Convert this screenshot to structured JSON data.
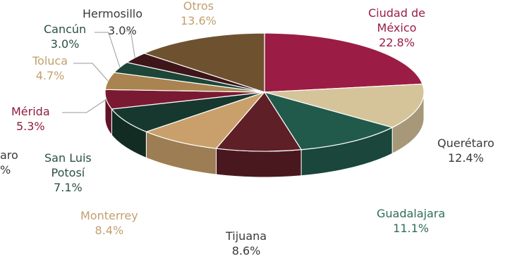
{
  "chart_data": {
    "type": "pie",
    "title": "",
    "slices": [
      {
        "label": "Ciudad de México",
        "lines": [
          "Ciudad de",
          "México"
        ],
        "pct": "22.8%",
        "value": 22.8,
        "color": "#9b1d45",
        "text_color": "#9b1d45"
      },
      {
        "label": "Querétaro",
        "lines": [
          "Querétaro"
        ],
        "pct": "12.4%",
        "value": 12.4,
        "color": "#d5c39a",
        "text_color": "#3a3a3a"
      },
      {
        "label": "Guadalajara",
        "lines": [
          "Guadalajara"
        ],
        "pct": "11.1%",
        "value": 11.1,
        "color": "#215a4b",
        "text_color": "#2f6e55"
      },
      {
        "label": "Tijuana",
        "lines": [
          "Tijuana"
        ],
        "pct": "8.6%",
        "value": 8.6,
        "color": "#5e1f27",
        "text_color": "#3a3a3a"
      },
      {
        "label": "Monterrey",
        "lines": [
          "Monterrey"
        ],
        "pct": "8.4%",
        "value": 8.4,
        "color": "#c9a06b",
        "text_color": "#c2a070"
      },
      {
        "label": "San Luis Potosí",
        "lines": [
          "San Luis",
          "Potosí"
        ],
        "pct": "7.1%",
        "value": 7.1,
        "color": "#17382e",
        "text_color": "#2a5140"
      },
      {
        "label": "Mérida",
        "lines": [
          "Mérida"
        ],
        "pct": "5.3%",
        "value": 5.3,
        "color": "#7a1a32",
        "text_color": "#8e1c3d"
      },
      {
        "label": "Toluca",
        "lines": [
          "Toluca"
        ],
        "pct": "4.7%",
        "value": 4.7,
        "color": "#a98450",
        "text_color": "#c2a070"
      },
      {
        "label": "Cancún",
        "lines": [
          "Cancún"
        ],
        "pct": "3.0%",
        "value": 3.0,
        "color": "#1d4638",
        "text_color": "#2a5140"
      },
      {
        "label": "Hermosillo",
        "lines": [
          "Hermosillo"
        ],
        "pct": "3.0%",
        "value": 3.0,
        "color": "#3e1619",
        "text_color": "#3a3a3a"
      },
      {
        "label": "Otros",
        "lines": [
          "Otros"
        ],
        "pct": "13.6%",
        "value": 13.6,
        "color": "#6e5230",
        "text_color": "#c2a070"
      }
    ],
    "cut_label": {
      "lines": [
        "aro"
      ],
      "pct": "%",
      "text_color": "#3a3a3a"
    }
  }
}
